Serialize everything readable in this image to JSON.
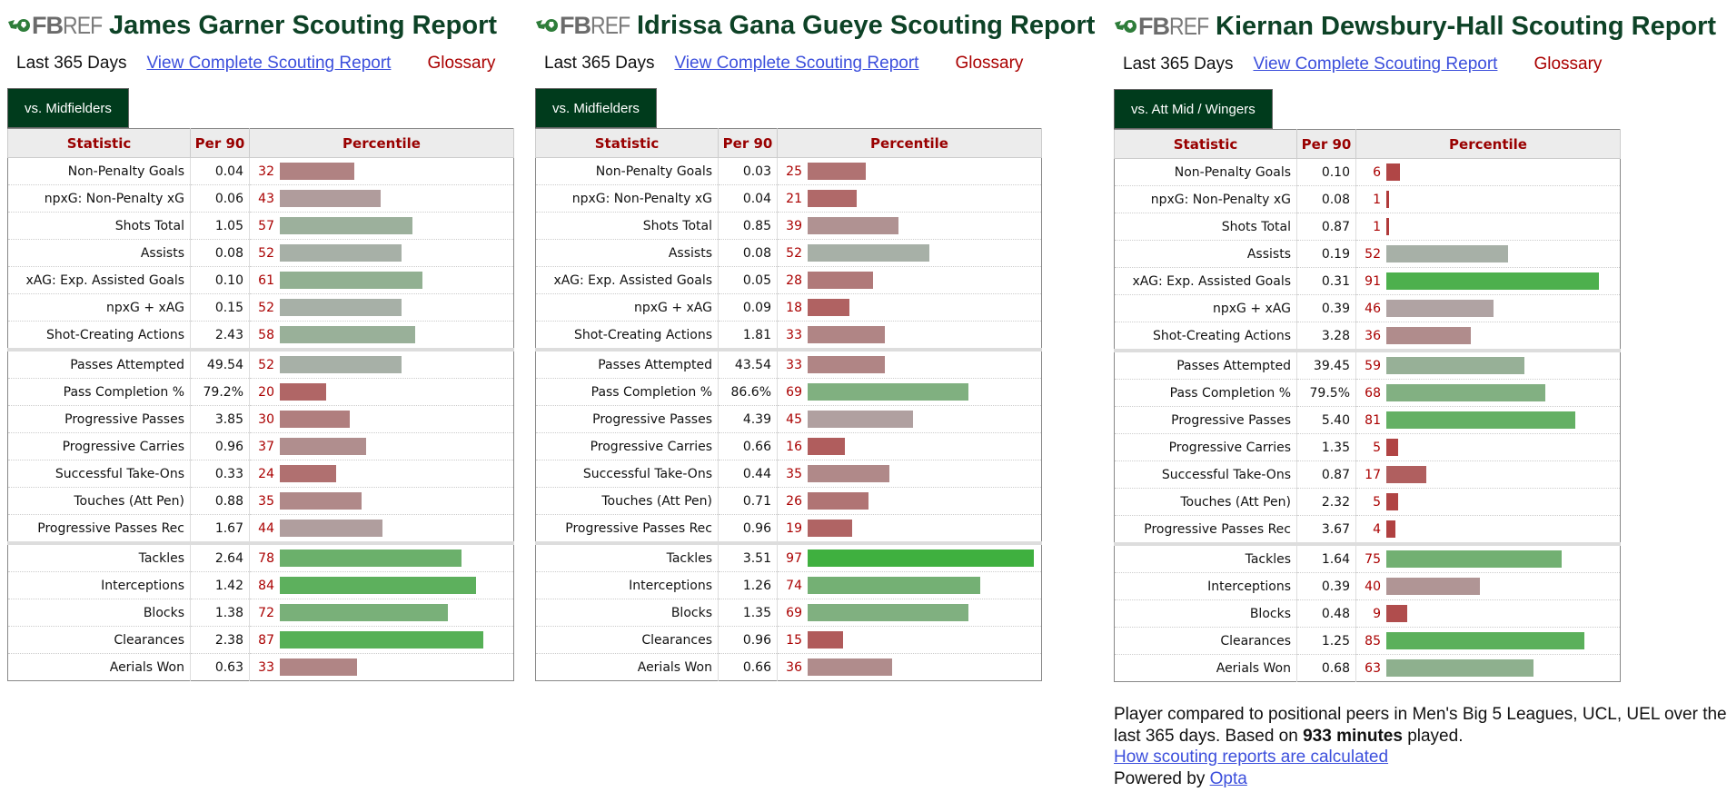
{
  "logo": {
    "bold": "FB",
    "light": "REF"
  },
  "common": {
    "period": "Last 365 Days",
    "complete_link": "View Complete Scouting Report",
    "glossary": "Glossary",
    "col_stat": "Statistic",
    "col_per90": "Per 90",
    "col_pct": "Percentile"
  },
  "colors": {
    "title": "#0d4226",
    "tab_bg": "#003b1c",
    "header_text": "#990000",
    "bar_low": "#b03838",
    "bar_mid": "#acb0ac",
    "bar_high": "#38b038"
  },
  "panels": [
    {
      "title": "James Garner Scouting Report",
      "tab": "vs. Midfielders",
      "rows": [
        {
          "stat": "Non-Penalty Goals",
          "per90": "0.04",
          "pct": 32
        },
        {
          "stat": "npxG: Non-Penalty xG",
          "per90": "0.06",
          "pct": 43
        },
        {
          "stat": "Shots Total",
          "per90": "1.05",
          "pct": 57
        },
        {
          "stat": "Assists",
          "per90": "0.08",
          "pct": 52
        },
        {
          "stat": "xAG: Exp. Assisted Goals",
          "per90": "0.10",
          "pct": 61
        },
        {
          "stat": "npxG + xAG",
          "per90": "0.15",
          "pct": 52
        },
        {
          "stat": "Shot-Creating Actions",
          "per90": "2.43",
          "pct": 58
        },
        {
          "stat": "Passes Attempted",
          "per90": "49.54",
          "pct": 52
        },
        {
          "stat": "Pass Completion %",
          "per90": "79.2%",
          "pct": 20
        },
        {
          "stat": "Progressive Passes",
          "per90": "3.85",
          "pct": 30
        },
        {
          "stat": "Progressive Carries",
          "per90": "0.96",
          "pct": 37
        },
        {
          "stat": "Successful Take-Ons",
          "per90": "0.33",
          "pct": 24
        },
        {
          "stat": "Touches (Att Pen)",
          "per90": "0.88",
          "pct": 35
        },
        {
          "stat": "Progressive Passes Rec",
          "per90": "1.67",
          "pct": 44
        },
        {
          "stat": "Tackles",
          "per90": "2.64",
          "pct": 78
        },
        {
          "stat": "Interceptions",
          "per90": "1.42",
          "pct": 84
        },
        {
          "stat": "Blocks",
          "per90": "1.38",
          "pct": 72
        },
        {
          "stat": "Clearances",
          "per90": "2.38",
          "pct": 87
        },
        {
          "stat": "Aerials Won",
          "per90": "0.63",
          "pct": 33
        }
      ]
    },
    {
      "title": "Idrissa Gana Gueye Scouting Report",
      "tab": "vs. Midfielders",
      "rows": [
        {
          "stat": "Non-Penalty Goals",
          "per90": "0.03",
          "pct": 25
        },
        {
          "stat": "npxG: Non-Penalty xG",
          "per90": "0.04",
          "pct": 21
        },
        {
          "stat": "Shots Total",
          "per90": "0.85",
          "pct": 39
        },
        {
          "stat": "Assists",
          "per90": "0.08",
          "pct": 52
        },
        {
          "stat": "xAG: Exp. Assisted Goals",
          "per90": "0.05",
          "pct": 28
        },
        {
          "stat": "npxG + xAG",
          "per90": "0.09",
          "pct": 18
        },
        {
          "stat": "Shot-Creating Actions",
          "per90": "1.81",
          "pct": 33
        },
        {
          "stat": "Passes Attempted",
          "per90": "43.54",
          "pct": 33
        },
        {
          "stat": "Pass Completion %",
          "per90": "86.6%",
          "pct": 69
        },
        {
          "stat": "Progressive Passes",
          "per90": "4.39",
          "pct": 45
        },
        {
          "stat": "Progressive Carries",
          "per90": "0.66",
          "pct": 16
        },
        {
          "stat": "Successful Take-Ons",
          "per90": "0.44",
          "pct": 35
        },
        {
          "stat": "Touches (Att Pen)",
          "per90": "0.71",
          "pct": 26
        },
        {
          "stat": "Progressive Passes Rec",
          "per90": "0.96",
          "pct": 19
        },
        {
          "stat": "Tackles",
          "per90": "3.51",
          "pct": 97
        },
        {
          "stat": "Interceptions",
          "per90": "1.26",
          "pct": 74
        },
        {
          "stat": "Blocks",
          "per90": "1.35",
          "pct": 69
        },
        {
          "stat": "Clearances",
          "per90": "0.96",
          "pct": 15
        },
        {
          "stat": "Aerials Won",
          "per90": "0.66",
          "pct": 36
        }
      ]
    },
    {
      "title": "Kiernan Dewsbury-Hall Scouting Report",
      "tab": "vs. Att Mid / Wingers",
      "rows": [
        {
          "stat": "Non-Penalty Goals",
          "per90": "0.10",
          "pct": 6
        },
        {
          "stat": "npxG: Non-Penalty xG",
          "per90": "0.08",
          "pct": 1
        },
        {
          "stat": "Shots Total",
          "per90": "0.87",
          "pct": 1
        },
        {
          "stat": "Assists",
          "per90": "0.19",
          "pct": 52
        },
        {
          "stat": "xAG: Exp. Assisted Goals",
          "per90": "0.31",
          "pct": 91
        },
        {
          "stat": "npxG + xAG",
          "per90": "0.39",
          "pct": 46
        },
        {
          "stat": "Shot-Creating Actions",
          "per90": "3.28",
          "pct": 36
        },
        {
          "stat": "Passes Attempted",
          "per90": "39.45",
          "pct": 59
        },
        {
          "stat": "Pass Completion %",
          "per90": "79.5%",
          "pct": 68
        },
        {
          "stat": "Progressive Passes",
          "per90": "5.40",
          "pct": 81
        },
        {
          "stat": "Progressive Carries",
          "per90": "1.35",
          "pct": 5
        },
        {
          "stat": "Successful Take-Ons",
          "per90": "0.87",
          "pct": 17
        },
        {
          "stat": "Touches (Att Pen)",
          "per90": "2.32",
          "pct": 5
        },
        {
          "stat": "Progressive Passes Rec",
          "per90": "3.67",
          "pct": 4
        },
        {
          "stat": "Tackles",
          "per90": "1.64",
          "pct": 75
        },
        {
          "stat": "Interceptions",
          "per90": "0.39",
          "pct": 40
        },
        {
          "stat": "Blocks",
          "per90": "0.48",
          "pct": 9
        },
        {
          "stat": "Clearances",
          "per90": "1.25",
          "pct": 85
        },
        {
          "stat": "Aerials Won",
          "per90": "0.68",
          "pct": 63
        }
      ]
    }
  ],
  "footer": {
    "line1": "Player compared to positional peers in Men's Big 5 Leagues, UCL, UEL over the",
    "line2_pre": "last 365 days. Based on ",
    "line2_bold": "933 minutes",
    "line2_post": " played.",
    "how_link": "How scouting reports are calculated",
    "powered_by": "Powered by ",
    "opta_link": "Opta"
  }
}
